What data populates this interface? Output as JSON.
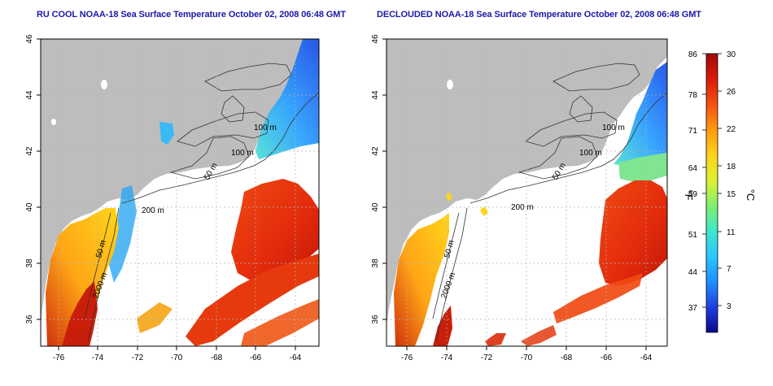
{
  "maps": [
    {
      "title": "RU COOL NOAA-18 Sea Surface Temperature October 02, 2008 06:48 GMT",
      "x_ticks": [
        "-76",
        "-74",
        "-72",
        "-70",
        "-68",
        "-66",
        "-64"
      ],
      "y_ticks": [
        "46",
        "44",
        "42",
        "40",
        "38",
        "36"
      ],
      "contour_labels": [
        "100 m",
        "100 m",
        "50 m",
        "200 m",
        "50 m",
        "2000 m"
      ]
    },
    {
      "title": "DECLOUDED NOAA-18 Sea Surface Temperature October 02, 2008 06:48 GMT",
      "x_ticks": [
        "-76",
        "-74",
        "-72",
        "-70",
        "-68",
        "-66",
        "-64"
      ],
      "y_ticks": [
        "46",
        "44",
        "42",
        "40",
        "38",
        "36"
      ],
      "contour_labels": [
        "100 m",
        "100 m",
        "50 m",
        "200 m",
        "50 m",
        "2000 m"
      ]
    }
  ],
  "colorbar": {
    "fahrenheit_label": "°F",
    "celsius_label": "°C",
    "fahrenheit_ticks": [
      "86",
      "78",
      "71",
      "64",
      "59",
      "51",
      "44",
      "37"
    ],
    "celsius_ticks": [
      "30",
      "26",
      "22",
      "18",
      "15",
      "11",
      "7",
      "3"
    ],
    "colors": [
      "#08088a",
      "#1f3fe0",
      "#1f8fff",
      "#29c8ff",
      "#3fe8c8",
      "#7fef70",
      "#dff030",
      "#ffd21a",
      "#ff9a10",
      "#f55010",
      "#dc1a0a",
      "#a00a0a"
    ]
  },
  "colors": {
    "land": "#bdbdbd",
    "no_data": "#ffffff",
    "title": "#1a1aa8"
  }
}
